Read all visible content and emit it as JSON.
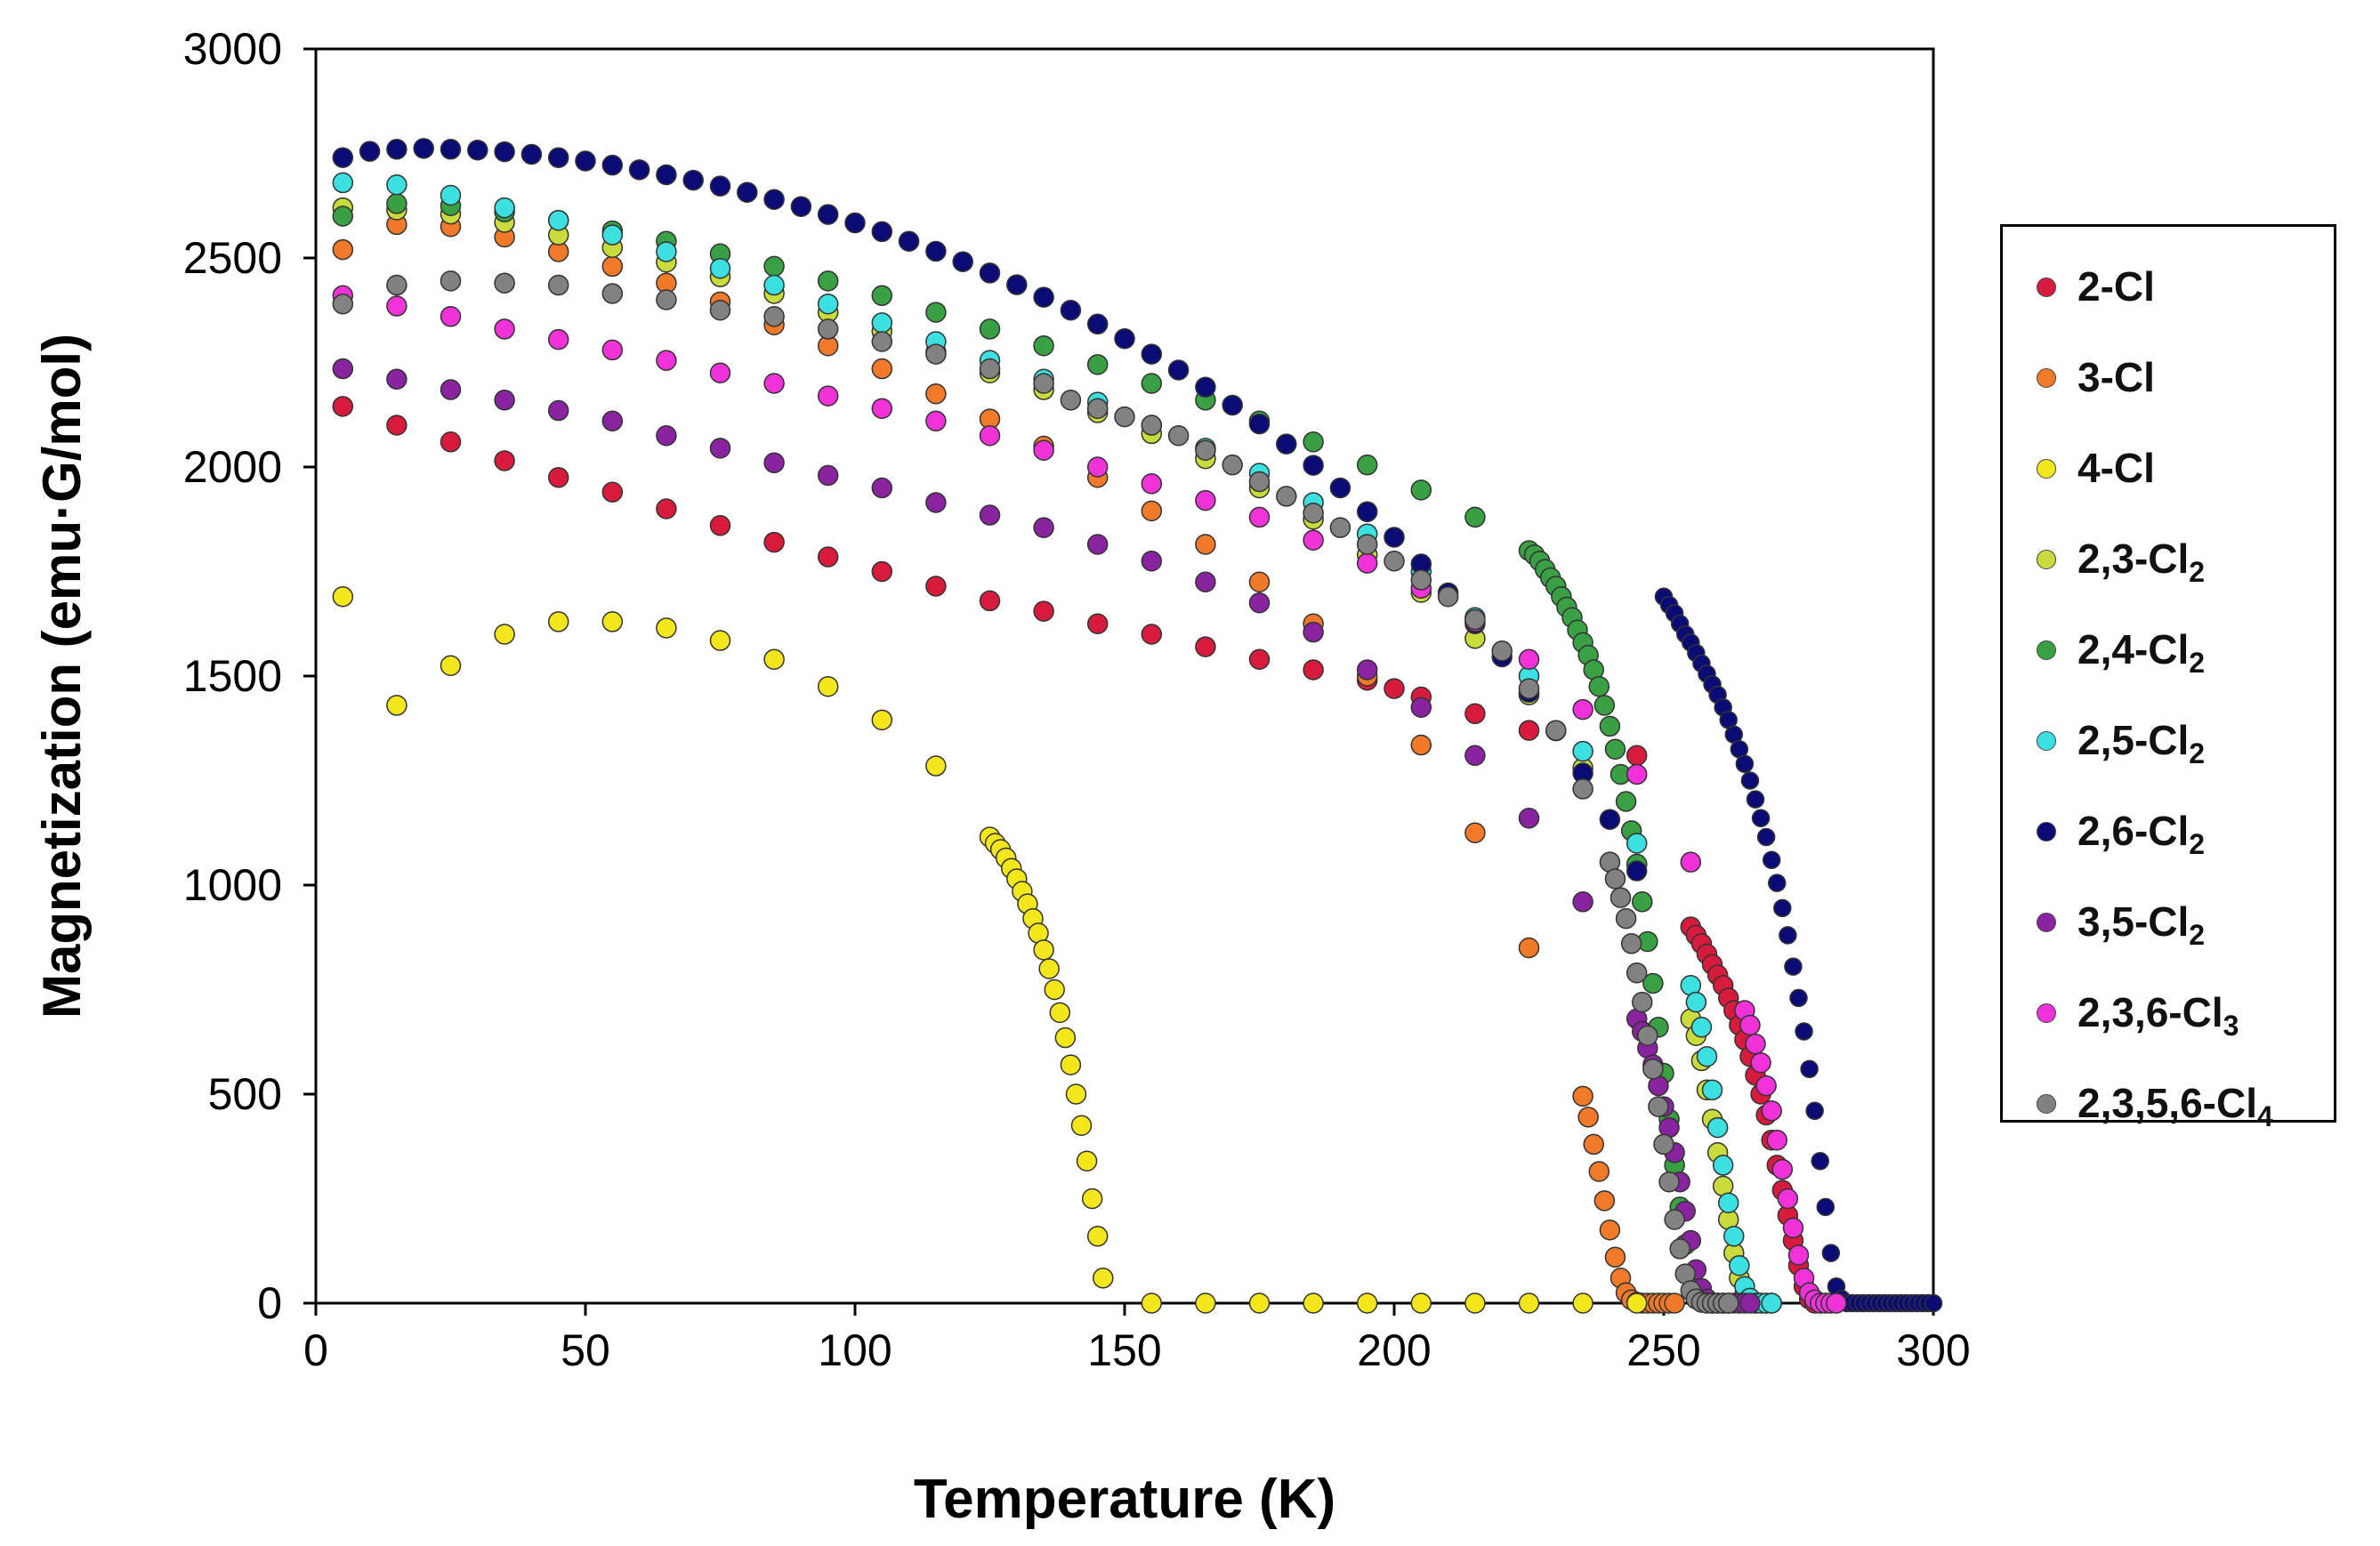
{
  "chart_data": {
    "type": "scatter",
    "title": "",
    "xlabel": "Temperature (K)",
    "ylabel": "Magnetization (emu·G/mol)",
    "xlim": [
      0,
      300
    ],
    "ylim": [
      0,
      3000
    ],
    "xticks": [
      "0",
      "50",
      "100",
      "150",
      "200",
      "250",
      "300"
    ],
    "yticks": [
      "0",
      "500",
      "1000",
      "1500",
      "2000",
      "2500",
      "3000"
    ],
    "grid": false,
    "legend_position": "right",
    "series": [
      {
        "name": "2-Cl",
        "base": "2-Cl",
        "sub": "",
        "color": "#d81b3c",
        "x": [
          5,
          15,
          25,
          35,
          45,
          55,
          65,
          75,
          85,
          95,
          105,
          115,
          125,
          135,
          145,
          155,
          165,
          175,
          185,
          195,
          200,
          205,
          215,
          225,
          245,
          255,
          256,
          257,
          258,
          259,
          260,
          261,
          262,
          263,
          264,
          265,
          266,
          267,
          268,
          269,
          270,
          271,
          272,
          273,
          274,
          275,
          276,
          277,
          278,
          279,
          280
        ],
        "y": [
          2145,
          2100,
          2060,
          2015,
          1975,
          1940,
          1900,
          1860,
          1820,
          1785,
          1750,
          1715,
          1680,
          1655,
          1625,
          1600,
          1570,
          1540,
          1515,
          1490,
          1470,
          1450,
          1410,
          1370,
          1310,
          900,
          880,
          860,
          835,
          810,
          785,
          760,
          730,
          700,
          665,
          630,
          590,
          545,
          500,
          450,
          390,
          330,
          270,
          210,
          150,
          90,
          40,
          10,
          0,
          0,
          0
        ]
      },
      {
        "name": "3-Cl",
        "base": "3-Cl",
        "sub": "",
        "color": "#f07a2a",
        "x": [
          5,
          15,
          25,
          35,
          45,
          55,
          65,
          75,
          85,
          95,
          105,
          115,
          125,
          135,
          145,
          155,
          165,
          175,
          185,
          195,
          205,
          215,
          225,
          235,
          236,
          237,
          238,
          239,
          240,
          241,
          242,
          243,
          244,
          245,
          246,
          247,
          248,
          249,
          250,
          251,
          252
        ],
        "y": [
          2520,
          2580,
          2575,
          2550,
          2515,
          2480,
          2440,
          2395,
          2340,
          2290,
          2235,
          2175,
          2115,
          2050,
          1975,
          1895,
          1815,
          1725,
          1625,
          1500,
          1335,
          1125,
          850,
          495,
          445,
          380,
          315,
          245,
          175,
          110,
          60,
          25,
          8,
          2,
          0,
          0,
          0,
          0,
          0,
          0,
          0
        ]
      },
      {
        "name": "4-Cl",
        "base": "4-Cl",
        "sub": "",
        "color": "#f3e61b",
        "x": [
          5,
          15,
          25,
          35,
          45,
          55,
          65,
          75,
          85,
          95,
          105,
          115,
          125,
          126,
          127,
          128,
          129,
          130,
          131,
          132,
          133,
          134,
          135,
          136,
          137,
          138,
          139,
          140,
          141,
          142,
          143,
          144,
          145,
          146,
          155,
          165,
          175,
          185,
          195,
          205,
          215,
          225,
          235,
          245
        ],
        "y": [
          1690,
          1430,
          1525,
          1600,
          1630,
          1630,
          1615,
          1585,
          1540,
          1475,
          1395,
          1285,
          1115,
          1100,
          1085,
          1065,
          1040,
          1015,
          985,
          955,
          920,
          885,
          845,
          800,
          750,
          695,
          635,
          570,
          500,
          425,
          340,
          250,
          160,
          60,
          0,
          0,
          0,
          0,
          0,
          0,
          0,
          0,
          0,
          0
        ]
      },
      {
        "name": "2,3-Cl2",
        "base": "2,3-Cl",
        "sub": "2",
        "color": "#c9dc3c",
        "x": [
          5,
          15,
          25,
          35,
          45,
          55,
          65,
          75,
          85,
          95,
          105,
          115,
          125,
          135,
          145,
          155,
          165,
          175,
          185,
          195,
          205,
          215,
          225,
          235,
          245,
          255,
          256,
          257,
          258,
          259,
          260,
          261,
          262,
          263,
          264,
          265,
          266,
          267,
          268,
          269,
          270
        ],
        "y": [
          2620,
          2615,
          2605,
          2585,
          2555,
          2525,
          2490,
          2455,
          2415,
          2370,
          2325,
          2275,
          2225,
          2185,
          2130,
          2080,
          2020,
          1950,
          1875,
          1790,
          1700,
          1590,
          1455,
          1280,
          1050,
          680,
          640,
          580,
          510,
          440,
          360,
          280,
          200,
          120,
          60,
          20,
          5,
          0,
          0,
          0,
          0
        ]
      },
      {
        "name": "2,4-Cl2",
        "base": "2,4-Cl",
        "sub": "2",
        "color": "#39a043",
        "x": [
          5,
          15,
          25,
          35,
          45,
          55,
          65,
          75,
          85,
          95,
          105,
          115,
          125,
          135,
          145,
          155,
          165,
          175,
          185,
          195,
          205,
          215,
          225,
          226,
          227,
          228,
          229,
          230,
          231,
          232,
          233,
          234,
          235,
          236,
          237,
          238,
          239,
          240,
          241,
          242,
          243,
          244,
          245,
          246,
          247,
          248,
          249,
          250,
          251,
          252,
          253,
          254,
          255,
          256,
          257,
          258,
          259,
          260,
          261,
          262
        ],
        "y": [
          2600,
          2630,
          2625,
          2610,
          2590,
          2565,
          2540,
          2510,
          2480,
          2445,
          2410,
          2370,
          2330,
          2290,
          2245,
          2200,
          2160,
          2110,
          2060,
          2005,
          1945,
          1880,
          1800,
          1790,
          1775,
          1755,
          1735,
          1715,
          1690,
          1665,
          1640,
          1610,
          1580,
          1550,
          1515,
          1475,
          1430,
          1380,
          1325,
          1265,
          1200,
          1130,
          1050,
          960,
          865,
          765,
          660,
          550,
          440,
          330,
          230,
          140,
          70,
          25,
          8,
          2,
          0,
          0,
          0,
          0
        ]
      },
      {
        "name": "2,5-Cl2",
        "base": "2,5-Cl",
        "sub": "2",
        "color": "#3de0e0",
        "x": [
          5,
          15,
          25,
          35,
          45,
          55,
          65,
          75,
          85,
          95,
          105,
          115,
          125,
          135,
          145,
          155,
          165,
          175,
          185,
          195,
          205,
          215,
          225,
          235,
          245,
          255,
          256,
          257,
          258,
          259,
          260,
          261,
          262,
          263,
          264,
          265,
          266,
          267,
          268,
          269,
          270
        ],
        "y": [
          2680,
          2675,
          2650,
          2620,
          2590,
          2555,
          2515,
          2475,
          2435,
          2390,
          2345,
          2300,
          2255,
          2210,
          2155,
          2100,
          2045,
          1985,
          1915,
          1840,
          1750,
          1640,
          1500,
          1320,
          1100,
          760,
          720,
          660,
          590,
          510,
          420,
          330,
          240,
          160,
          90,
          40,
          12,
          0,
          0,
          0,
          0
        ]
      },
      {
        "name": "2,6-Cl2",
        "base": "2,6-Cl",
        "sub": "2",
        "color": "#0b0b76",
        "x": [
          5,
          10,
          15,
          20,
          25,
          30,
          35,
          40,
          45,
          50,
          55,
          60,
          65,
          70,
          75,
          80,
          85,
          90,
          95,
          100,
          105,
          110,
          115,
          120,
          125,
          130,
          135,
          140,
          145,
          150,
          155,
          160,
          165,
          170,
          175,
          180,
          185,
          190,
          195,
          200,
          205,
          210,
          215,
          220,
          225,
          230,
          235,
          240,
          245,
          250,
          251,
          252,
          253,
          254,
          255,
          256,
          257,
          258,
          259,
          260,
          261,
          262,
          263,
          264,
          265,
          266,
          267,
          268,
          269,
          270,
          271,
          272,
          273,
          274,
          275,
          276,
          277,
          278,
          279,
          280,
          281,
          282,
          283,
          284,
          285,
          286,
          287,
          288,
          289,
          290,
          291,
          292,
          293,
          294,
          295,
          296,
          297,
          298,
          299,
          300
        ],
        "y": [
          2740,
          2755,
          2760,
          2762,
          2760,
          2758,
          2754,
          2748,
          2740,
          2732,
          2722,
          2711,
          2699,
          2686,
          2672,
          2657,
          2640,
          2623,
          2604,
          2584,
          2563,
          2540,
          2516,
          2491,
          2464,
          2436,
          2406,
          2375,
          2342,
          2307,
          2270,
          2232,
          2191,
          2148,
          2103,
          2055,
          2004,
          1950,
          1893,
          1832,
          1768,
          1699,
          1625,
          1546,
          1461,
          1369,
          1268,
          1157,
          1034,
          1690,
          1670,
          1650,
          1625,
          1600,
          1580,
          1555,
          1530,
          1505,
          1480,
          1455,
          1425,
          1395,
          1360,
          1325,
          1290,
          1250,
          1205,
          1160,
          1115,
          1060,
          1005,
          945,
          880,
          805,
          730,
          650,
          560,
          460,
          340,
          230,
          120,
          40,
          10,
          0,
          0,
          0,
          0,
          0,
          0,
          0,
          0,
          0,
          0,
          0,
          0,
          0,
          0,
          0,
          0,
          0
        ],
        "curve_points": 49
      },
      {
        "name": "3,5-Cl2",
        "base": "3,5-Cl",
        "sub": "2",
        "color": "#8a23a0",
        "x": [
          5,
          15,
          25,
          35,
          45,
          55,
          65,
          75,
          85,
          95,
          105,
          115,
          125,
          135,
          145,
          155,
          165,
          175,
          185,
          195,
          205,
          215,
          225,
          235,
          245,
          246,
          247,
          248,
          249,
          250,
          251,
          252,
          253,
          254,
          255,
          256,
          257,
          258,
          259,
          260,
          261,
          262,
          263,
          264,
          265,
          266
        ],
        "y": [
          2235,
          2210,
          2185,
          2160,
          2135,
          2110,
          2075,
          2045,
          2010,
          1980,
          1950,
          1915,
          1885,
          1855,
          1815,
          1775,
          1725,
          1675,
          1605,
          1515,
          1425,
          1310,
          1160,
          960,
          680,
          650,
          610,
          570,
          520,
          470,
          420,
          360,
          290,
          220,
          150,
          80,
          35,
          10,
          0,
          0,
          0,
          0,
          0,
          0,
          0,
          0
        ]
      },
      {
        "name": "2,3,6-Cl3",
        "base": "2,3,6-Cl",
        "sub": "3",
        "color": "#f032d8",
        "x": [
          5,
          15,
          25,
          35,
          45,
          55,
          65,
          75,
          85,
          95,
          105,
          115,
          125,
          135,
          145,
          155,
          165,
          175,
          185,
          195,
          205,
          215,
          225,
          235,
          245,
          255,
          265,
          266,
          267,
          268,
          269,
          270,
          271,
          272,
          273,
          274,
          275,
          276,
          277,
          278,
          279,
          280,
          281,
          282
        ],
        "y": [
          2410,
          2385,
          2360,
          2330,
          2305,
          2280,
          2255,
          2225,
          2200,
          2170,
          2140,
          2110,
          2075,
          2040,
          2000,
          1960,
          1920,
          1880,
          1825,
          1770,
          1710,
          1630,
          1540,
          1420,
          1265,
          1055,
          700,
          665,
          620,
          575,
          520,
          460,
          390,
          320,
          250,
          180,
          115,
          60,
          25,
          8,
          0,
          0,
          0,
          0
        ]
      },
      {
        "name": "2,3,5,6-Cl4",
        "base": "2,3,5,6-Cl",
        "sub": "4",
        "color": "#828282",
        "x": [
          5,
          15,
          25,
          35,
          45,
          55,
          65,
          75,
          85,
          95,
          105,
          115,
          125,
          135,
          140,
          145,
          150,
          155,
          160,
          165,
          170,
          175,
          180,
          185,
          190,
          195,
          200,
          205,
          210,
          215,
          220,
          225,
          230,
          235,
          240,
          241,
          242,
          243,
          244,
          245,
          246,
          247,
          248,
          249,
          250,
          251,
          252,
          253,
          254,
          255,
          256,
          257,
          258,
          259,
          260,
          261,
          262
        ],
        "y": [
          2390,
          2435,
          2445,
          2440,
          2435,
          2415,
          2400,
          2375,
          2360,
          2330,
          2300,
          2270,
          2235,
          2200,
          2160,
          2140,
          2120,
          2100,
          2075,
          2040,
          2005,
          1965,
          1930,
          1890,
          1855,
          1815,
          1775,
          1730,
          1690,
          1635,
          1560,
          1470,
          1370,
          1230,
          1055,
          1015,
          970,
          920,
          860,
          790,
          720,
          640,
          560,
          470,
          380,
          290,
          200,
          130,
          70,
          30,
          10,
          2,
          0,
          0,
          0,
          0,
          0
        ]
      }
    ]
  }
}
